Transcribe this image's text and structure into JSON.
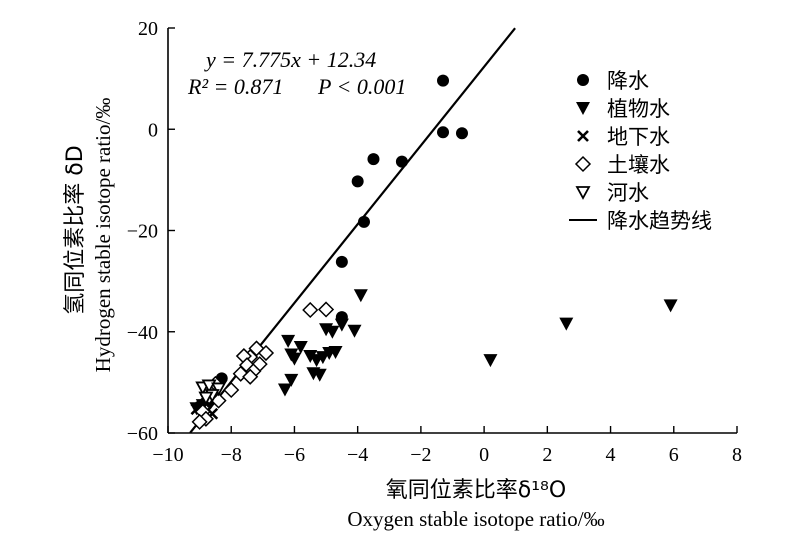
{
  "chart_data": {
    "type": "scatter",
    "xlabel_cn": "氧同位素比率δ¹⁸O",
    "xlabel_en": "Oxygen stable isotope ratio/‰",
    "ylabel_cn": "氢同位素比率 δD",
    "ylabel_en": "Hydrogen stable isotope ratio/‰",
    "xlim": [
      -10,
      8
    ],
    "ylim": [
      -60,
      20
    ],
    "xticks": [
      -10,
      -8,
      -6,
      -4,
      -2,
      0,
      2,
      4,
      6,
      8
    ],
    "yticks": [
      -60,
      -40,
      -20,
      0,
      20
    ],
    "equation": "y = 7.775x + 12.34",
    "r2_text": "R² = 0.871",
    "p_text": "P < 0.001",
    "trend": {
      "name": "降水趋势线",
      "slope": 7.775,
      "intercept": 12.34,
      "x_range": [
        -9.3,
        0.98
      ]
    },
    "series": [
      {
        "name": "降水",
        "marker": "circle",
        "points": [
          [
            -1.3,
            9.6
          ],
          [
            -1.3,
            -0.6
          ],
          [
            -0.7,
            -0.8
          ],
          [
            -3.5,
            -5.9
          ],
          [
            -2.6,
            -6.4
          ],
          [
            -4.0,
            -10.3
          ],
          [
            -3.8,
            -18.3
          ],
          [
            -4.5,
            -26.2
          ],
          [
            -4.5,
            -37.1
          ],
          [
            -8.3,
            -49.2
          ],
          [
            -8.7,
            -53.5
          ],
          [
            -9.0,
            -54.8
          ]
        ]
      },
      {
        "name": "植物水",
        "marker": "triangle-down",
        "points": [
          [
            -3.9,
            -32.8
          ],
          [
            -4.5,
            -38.6
          ],
          [
            -4.1,
            -39.8
          ],
          [
            -5.0,
            -39.5
          ],
          [
            -4.8,
            -40.0
          ],
          [
            -6.2,
            -41.8
          ],
          [
            -5.8,
            -43.0
          ],
          [
            -6.1,
            -44.5
          ],
          [
            -6.0,
            -45.3
          ],
          [
            -5.5,
            -44.8
          ],
          [
            -5.3,
            -45.6
          ],
          [
            -5.1,
            -45.0
          ],
          [
            -4.9,
            -44.2
          ],
          [
            -4.7,
            -44.0
          ],
          [
            -5.4,
            -48.2
          ],
          [
            -5.2,
            -48.5
          ],
          [
            -6.1,
            -49.5
          ],
          [
            -6.3,
            -51.4
          ],
          [
            0.2,
            -45.6
          ],
          [
            2.6,
            -38.4
          ],
          [
            5.9,
            -34.8
          ],
          [
            -9.1,
            -55.1
          ],
          [
            -8.9,
            -54.5
          ]
        ]
      },
      {
        "name": "地下水",
        "marker": "x",
        "points": [
          [
            -9.1,
            -55.3
          ],
          [
            -8.8,
            -54.2
          ],
          [
            -8.6,
            -56.2
          ],
          [
            -8.8,
            -53.3
          ]
        ]
      },
      {
        "name": "土壤水",
        "marker": "diamond",
        "points": [
          [
            -5.5,
            -35.7
          ],
          [
            -5.0,
            -35.6
          ],
          [
            -7.2,
            -43.3
          ],
          [
            -6.9,
            -44.2
          ],
          [
            -7.4,
            -45.0
          ],
          [
            -7.6,
            -44.8
          ],
          [
            -7.5,
            -46.6
          ],
          [
            -7.1,
            -46.4
          ],
          [
            -7.3,
            -47.8
          ],
          [
            -7.7,
            -48.3
          ],
          [
            -7.4,
            -48.9
          ],
          [
            -8.5,
            -50.3
          ],
          [
            -8.0,
            -51.5
          ],
          [
            -8.7,
            -52.8
          ],
          [
            -8.4,
            -53.6
          ],
          [
            -8.9,
            -55.8
          ],
          [
            -8.8,
            -57.2
          ],
          [
            -9.0,
            -57.8
          ]
        ]
      },
      {
        "name": "河水",
        "marker": "triangle-down-open",
        "points": [
          [
            -8.9,
            -51.0
          ],
          [
            -8.7,
            -50.6
          ],
          [
            -8.4,
            -51.2
          ],
          [
            -8.6,
            -52.5
          ],
          [
            -8.8,
            -53.0
          ]
        ]
      }
    ]
  }
}
